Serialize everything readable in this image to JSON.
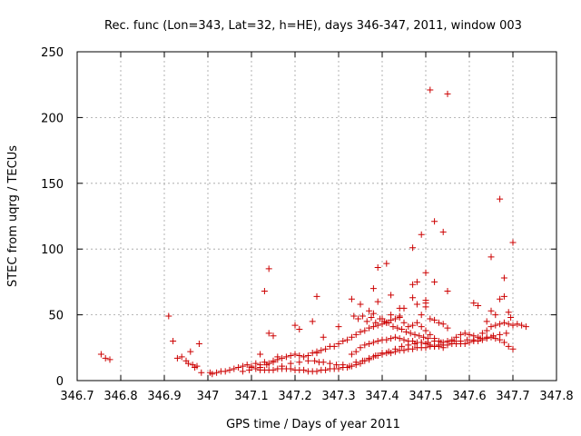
{
  "chart_data": {
    "type": "scatter",
    "title": "Rec. func (Lon=343, Lat=32, h=HE), days 346-347, 2011, window 003",
    "xlabel": "GPS time / Days of year 2011",
    "ylabel": "STEC from uqrg / TECUs",
    "xlim": [
      346.7,
      347.8
    ],
    "ylim": [
      0,
      250
    ],
    "xticks": [
      "346.7",
      "346.8",
      "346.9",
      "347",
      "347.1",
      "347.2",
      "347.3",
      "347.4",
      "347.5",
      "347.6",
      "347.7",
      "347.8"
    ],
    "yticks": [
      "0",
      "50",
      "100",
      "150",
      "200",
      "250"
    ],
    "grid": true,
    "marker": "+",
    "color": "#cc0000",
    "x": [
      346.755,
      346.765,
      346.775,
      346.91,
      346.92,
      346.93,
      346.94,
      346.95,
      346.955,
      346.96,
      346.965,
      346.97,
      346.975,
      346.98,
      346.985,
      347.005,
      347.01,
      347.02,
      347.03,
      347.04,
      347.05,
      347.06,
      347.07,
      347.08,
      347.09,
      347.1,
      347.11,
      347.12,
      347.13,
      347.14,
      347.15,
      347.16,
      347.17,
      347.18,
      347.19,
      347.2,
      347.21,
      347.22,
      347.23,
      347.24,
      347.25,
      347.26,
      347.27,
      347.28,
      347.29,
      347.3,
      347.31,
      347.32,
      347.33,
      347.34,
      347.35,
      347.36,
      347.37,
      347.38,
      347.39,
      347.4,
      347.41,
      347.42,
      347.43,
      347.44,
      347.45,
      347.46,
      347.47,
      347.48,
      347.49,
      347.5,
      347.51,
      347.52,
      347.53,
      347.54,
      347.55,
      347.56,
      347.57,
      347.58,
      347.59,
      347.6,
      347.61,
      347.62,
      347.63,
      347.64,
      347.65,
      347.66,
      347.67,
      347.68,
      347.69,
      347.7,
      347.71,
      347.72,
      347.73,
      347.1,
      347.11,
      347.12,
      347.13,
      347.14,
      347.15,
      347.16,
      347.17,
      347.18,
      347.19,
      347.2,
      347.21,
      347.22,
      347.23,
      347.24,
      347.25,
      347.26,
      347.27,
      347.28,
      347.29,
      347.3,
      347.31,
      347.32,
      347.33,
      347.34,
      347.35,
      347.36,
      347.37,
      347.38,
      347.39,
      347.4,
      347.41,
      347.42,
      347.43,
      347.44,
      347.45,
      347.46,
      347.47,
      347.48,
      347.49,
      347.5,
      347.51,
      347.52,
      347.53,
      347.54,
      347.55,
      347.56,
      347.57,
      347.58,
      347.59,
      347.6,
      347.61,
      347.62,
      347.63,
      347.64,
      347.65,
      347.66,
      347.67,
      347.68,
      347.69,
      347.7,
      347.08,
      347.095,
      347.12,
      347.135,
      347.15,
      347.17,
      347.19,
      347.21,
      347.23,
      347.245,
      347.255,
      347.265,
      347.28,
      347.295,
      347.31,
      347.325,
      347.34,
      347.355,
      347.37,
      347.385,
      347.4,
      347.415,
      347.43,
      347.445,
      347.46,
      347.475,
      347.49,
      347.505,
      347.52,
      347.535,
      347.55,
      347.565,
      347.58,
      347.595,
      347.61,
      347.625,
      347.64,
      347.655,
      347.67,
      347.685,
      347.335,
      347.345,
      347.355,
      347.365,
      347.375,
      347.385,
      347.395,
      347.405,
      347.415,
      347.425,
      347.435,
      347.445,
      347.455,
      347.465,
      347.475,
      347.485,
      347.495,
      347.505,
      347.33,
      347.34,
      347.35,
      347.36,
      347.37,
      347.38,
      347.39,
      347.4,
      347.41,
      347.42,
      347.43,
      347.44,
      347.45,
      347.46,
      347.47,
      347.48,
      347.49,
      347.5,
      347.51,
      347.52,
      347.53,
      347.54,
      347.12,
      347.14,
      347.15,
      347.16,
      347.2,
      347.21,
      347.24,
      347.25,
      347.265,
      347.3,
      347.33,
      347.35,
      347.37,
      347.38,
      347.39,
      347.4,
      347.41,
      347.42,
      347.44,
      347.45,
      347.47,
      347.48,
      347.49,
      347.5,
      347.51,
      347.52,
      347.53,
      347.54,
      347.55,
      347.61,
      347.62,
      347.64,
      347.65,
      347.66,
      347.67,
      347.68,
      347.69,
      347.695,
      347.5,
      347.55
    ],
    "y": [
      20,
      17,
      16,
      49,
      30,
      17,
      18,
      15,
      13,
      22,
      12,
      10,
      11,
      28,
      6,
      6,
      5,
      6,
      7,
      7,
      8,
      9,
      10,
      11,
      12,
      11,
      13,
      12,
      14,
      13,
      15,
      16,
      17,
      18,
      19,
      20,
      19,
      18,
      19,
      21,
      22,
      23,
      24,
      26,
      26,
      28,
      30,
      31,
      33,
      35,
      37,
      38,
      40,
      41,
      42,
      43,
      44,
      46,
      47,
      48,
      44,
      41,
      42,
      44,
      41,
      38,
      35,
      32,
      30,
      29,
      30,
      31,
      33,
      35,
      36,
      35,
      34,
      33,
      36,
      38,
      41,
      42,
      43,
      44,
      43,
      42,
      43,
      42,
      41,
      10,
      9,
      8,
      8,
      8,
      8,
      9,
      9,
      9,
      9,
      8,
      8,
      8,
      7,
      7,
      7,
      8,
      8,
      9,
      9,
      9,
      10,
      10,
      11,
      12,
      13,
      15,
      16,
      18,
      19,
      20,
      21,
      21,
      22,
      23,
      23,
      24,
      24,
      25,
      25,
      25,
      26,
      26,
      27,
      27,
      27,
      28,
      28,
      28,
      28,
      29,
      30,
      30,
      31,
      32,
      33,
      32,
      31,
      29,
      26,
      24,
      7,
      8,
      10,
      12,
      14,
      11,
      13,
      14,
      15,
      15,
      14,
      14,
      13,
      12,
      12,
      11,
      14,
      15,
      17,
      19,
      21,
      22,
      24,
      26,
      27,
      28,
      29,
      29,
      30,
      29,
      29,
      30,
      30,
      31,
      31,
      32,
      33,
      34,
      35,
      36,
      49,
      47,
      49,
      45,
      48,
      44,
      47,
      45,
      44,
      41,
      40,
      39,
      37,
      36,
      35,
      34,
      33,
      32,
      20,
      22,
      25,
      27,
      28,
      29,
      30,
      31,
      31,
      32,
      33,
      32,
      31,
      30,
      30,
      29,
      29,
      28,
      27,
      26,
      26,
      25,
      20,
      36,
      34,
      18,
      42,
      39,
      45,
      21,
      33,
      41,
      62,
      58,
      53,
      51,
      60,
      47,
      44,
      50,
      49,
      55,
      63,
      58,
      50,
      56,
      47,
      46,
      44,
      43,
      40,
      59,
      57,
      45,
      53,
      50,
      62,
      64,
      52,
      48,
      61,
      68
    ],
    "outliers_x": [
      347.13,
      347.14,
      347.25,
      347.38,
      347.39,
      347.41,
      347.42,
      347.47,
      347.48,
      347.49,
      347.5,
      347.51,
      347.52,
      347.54,
      347.55,
      347.65,
      347.67,
      347.68,
      347.7,
      347.47,
      347.5,
      347.52,
      347.44
    ],
    "outliers_y": [
      68,
      85,
      64,
      70,
      86,
      89,
      65,
      101,
      75,
      111,
      59,
      221,
      121,
      113,
      218,
      94,
      138,
      78,
      105,
      73,
      82,
      75,
      55
    ]
  }
}
